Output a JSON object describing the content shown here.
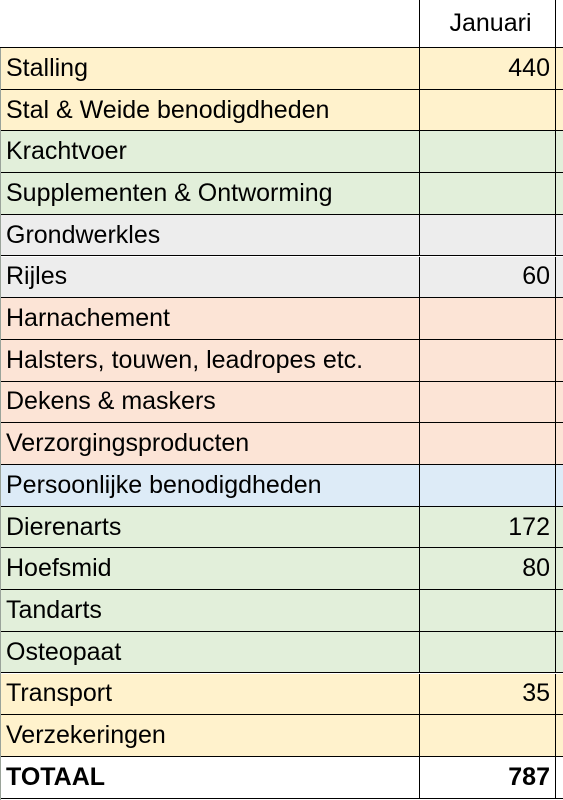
{
  "header": {
    "label": "",
    "month": "Januari",
    "next_month_partial": "I"
  },
  "colors": {
    "yellow": "#fff2cc",
    "green": "#e2efda",
    "grey": "#ededed",
    "orange": "#fce4d6",
    "blue": "#ddebf7",
    "white": "#ffffff"
  },
  "rows": [
    {
      "label": "Stalling",
      "januari": "440",
      "color": "yellow"
    },
    {
      "label": "Stal & Weide benodigdheden",
      "januari": "",
      "color": "yellow"
    },
    {
      "label": "Krachtvoer",
      "januari": "",
      "color": "green"
    },
    {
      "label": "Supplementen & Ontworming",
      "januari": "",
      "color": "green"
    },
    {
      "label": "Grondwerkles",
      "januari": "",
      "color": "grey"
    },
    {
      "label": "Rijles",
      "januari": "60",
      "color": "grey"
    },
    {
      "label": "Harnachement",
      "januari": "",
      "color": "orange"
    },
    {
      "label": "Halsters, touwen, leadropes etc.",
      "januari": "",
      "color": "orange"
    },
    {
      "label": "Dekens & maskers",
      "januari": "",
      "color": "orange"
    },
    {
      "label": "Verzorgingsproducten",
      "januari": "",
      "color": "orange"
    },
    {
      "label": "Persoonlijke benodigdheden",
      "januari": "",
      "color": "blue"
    },
    {
      "label": "Dierenarts",
      "januari": "172",
      "color": "green"
    },
    {
      "label": "Hoefsmid",
      "januari": "80",
      "color": "green"
    },
    {
      "label": "Tandarts",
      "januari": "",
      "color": "green"
    },
    {
      "label": "Osteopaat",
      "januari": "",
      "color": "green"
    },
    {
      "label": "Transport",
      "januari": "35",
      "color": "yellow"
    },
    {
      "label": "Verzekeringen",
      "januari": "",
      "color": "yellow"
    }
  ],
  "total": {
    "label": "TOTAAL",
    "januari": "787"
  }
}
